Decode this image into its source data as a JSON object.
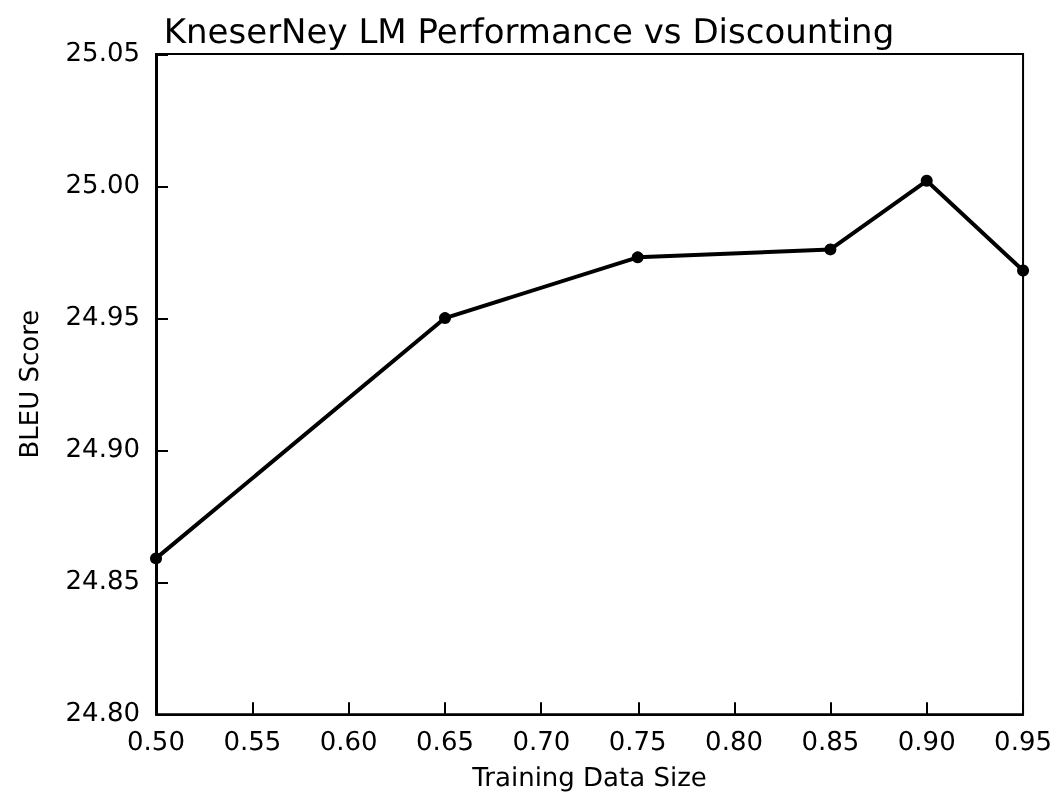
{
  "chart_data": {
    "type": "line",
    "title": "KneserNey LM Performance vs Discounting",
    "xlabel": "Training Data Size",
    "ylabel": "BLEU Score",
    "x": [
      0.5,
      0.65,
      0.75,
      0.85,
      0.9,
      0.95
    ],
    "series": [
      {
        "color": "#000000",
        "values": [
          24.859,
          24.95,
          24.973,
          24.976,
          25.002,
          24.968
        ]
      }
    ],
    "xlim": [
      0.5,
      0.95
    ],
    "xticks": [
      {
        "value": 0.5,
        "label": "0.50"
      },
      {
        "value": 0.55,
        "label": "0.55"
      },
      {
        "value": 0.6,
        "label": "0.60"
      },
      {
        "value": 0.65,
        "label": "0.65"
      },
      {
        "value": 0.7,
        "label": "0.70"
      },
      {
        "value": 0.75,
        "label": "0.75"
      },
      {
        "value": 0.8,
        "label": "0.80"
      },
      {
        "value": 0.85,
        "label": "0.85"
      },
      {
        "value": 0.9,
        "label": "0.90"
      },
      {
        "value": 0.95,
        "label": "0.95"
      }
    ],
    "ylim": [
      24.8,
      25.05
    ],
    "yticks": [
      {
        "value": 24.8,
        "label": "24.80"
      },
      {
        "value": 24.85,
        "label": "24.85"
      },
      {
        "value": 24.9,
        "label": "24.90"
      },
      {
        "value": 24.95,
        "label": "24.95"
      },
      {
        "value": 25.0,
        "label": "25.00"
      },
      {
        "value": 25.05,
        "label": "25.05"
      }
    ],
    "grid": false,
    "marker": "circle",
    "line_style": "solid"
  }
}
